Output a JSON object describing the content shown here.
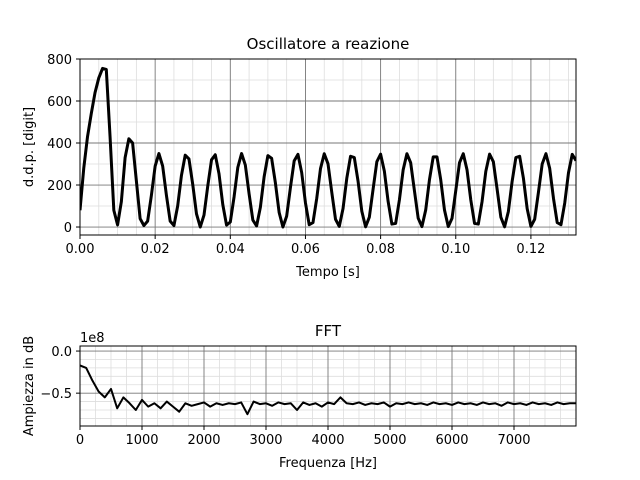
{
  "chart_data": [
    {
      "type": "line",
      "title": "Oscillatore a reazione",
      "x_label": "Tempo [s]",
      "y_label": "d.d.p. [digit]",
      "color": "#000000",
      "x": [
        0,
        0.001,
        0.002,
        0.003,
        0.004,
        0.005,
        0.006,
        0.007,
        0.008,
        0.009,
        0.01,
        0.011,
        0.012,
        0.013,
        0.014,
        0.015,
        0.016,
        0.017,
        0.018,
        0.019,
        0.02,
        0.021,
        0.022,
        0.023,
        0.024,
        0.025,
        0.026,
        0.027,
        0.028,
        0.029,
        0.03,
        0.031,
        0.032,
        0.033,
        0.034,
        0.035,
        0.036,
        0.037,
        0.038,
        0.039,
        0.04,
        0.041,
        0.042,
        0.043,
        0.044,
        0.045,
        0.046,
        0.047,
        0.048,
        0.049,
        0.05,
        0.051,
        0.052,
        0.053,
        0.054,
        0.055,
        0.056,
        0.057,
        0.058,
        0.059,
        0.06,
        0.061,
        0.062,
        0.063,
        0.064,
        0.065,
        0.066,
        0.067,
        0.068,
        0.069,
        0.07,
        0.071,
        0.072,
        0.073,
        0.074,
        0.075,
        0.076,
        0.077,
        0.078,
        0.079,
        0.08,
        0.081,
        0.082,
        0.083,
        0.084,
        0.085,
        0.086,
        0.087,
        0.088,
        0.089,
        0.09,
        0.091,
        0.092,
        0.093,
        0.094,
        0.095,
        0.096,
        0.097,
        0.098,
        0.099,
        0.1,
        0.101,
        0.102,
        0.103,
        0.104,
        0.105,
        0.106,
        0.107,
        0.108,
        0.109,
        0.11,
        0.111,
        0.112,
        0.113,
        0.114,
        0.115,
        0.116,
        0.117,
        0.118,
        0.119,
        0.12,
        0.121,
        0.122,
        0.123,
        0.124,
        0.125,
        0.126,
        0.127,
        0.128,
        0.129,
        0.13,
        0.131,
        0.132
      ],
      "values": [
        80,
        280,
        430,
        540,
        640,
        710,
        755,
        750,
        430,
        80,
        10,
        120,
        330,
        420,
        400,
        220,
        40,
        7,
        28,
        151,
        290,
        350,
        290,
        151,
        28,
        7,
        101,
        246,
        342,
        324,
        203,
        63,
        0,
        57,
        195,
        320,
        344,
        253,
        107,
        9,
        24,
        143,
        284,
        350,
        295,
        158,
        33,
        5,
        94,
        239,
        340,
        327,
        210,
        69,
        0,
        52,
        188,
        315,
        346,
        259,
        115,
        11,
        21,
        136,
        278,
        349,
        301,
        166,
        37,
        3,
        88,
        232,
        337,
        331,
        218,
        75,
        1,
        47,
        180,
        311,
        347,
        266,
        122,
        14,
        17,
        129,
        272,
        349,
        306,
        173,
        42,
        2,
        81,
        225,
        334,
        334,
        225,
        81,
        2,
        41,
        173,
        306,
        349,
        272,
        129,
        17,
        14,
        121,
        265,
        347,
        311,
        181,
        47,
        1,
        74,
        217,
        331,
        337,
        233,
        88,
        3,
        37,
        165,
        300,
        349,
        279,
        137,
        21,
        11,
        114,
        258,
        346,
        316
      ],
      "xlim": [
        0,
        0.132
      ],
      "ylim": [
        -38,
        800
      ],
      "xticks": [
        {
          "value": 0,
          "label": "0.00"
        },
        {
          "value": 0.02,
          "label": "0.02"
        },
        {
          "value": 0.04,
          "label": "0.04"
        },
        {
          "value": 0.06,
          "label": "0.06"
        },
        {
          "value": 0.08,
          "label": "0.08"
        },
        {
          "value": 0.1,
          "label": "0.10"
        },
        {
          "value": 0.12,
          "label": "0.12"
        }
      ],
      "yticks": [
        0,
        200,
        400,
        600,
        800
      ],
      "xminorticks": [
        0.005,
        0.01,
        0.015,
        0.025,
        0.03,
        0.035,
        0.045,
        0.05,
        0.055,
        0.065,
        0.07,
        0.075,
        0.085,
        0.09,
        0.095,
        0.105,
        0.11,
        0.115,
        0.125,
        0.13
      ],
      "yminorticks": [
        100,
        300,
        500,
        700
      ],
      "grid": true
    },
    {
      "type": "line",
      "title": "FFT",
      "x_label": "Frequenza [Hz]",
      "y_label": "Ampiezza in dB",
      "y_offset_label": "1e8",
      "color": "#000000",
      "x": [
        0,
        100,
        200,
        300,
        400,
        500,
        600,
        700,
        800,
        900,
        1000,
        1100,
        1200,
        1300,
        1400,
        1500,
        1600,
        1700,
        1800,
        1900,
        2000,
        2100,
        2200,
        2300,
        2400,
        2500,
        2600,
        2700,
        2800,
        2900,
        3000,
        3100,
        3200,
        3300,
        3400,
        3500,
        3600,
        3700,
        3800,
        3900,
        4000,
        4100,
        4200,
        4300,
        4400,
        4500,
        4600,
        4700,
        4800,
        4900,
        5000,
        5100,
        5200,
        5300,
        5400,
        5500,
        5600,
        5700,
        5800,
        5900,
        6000,
        6100,
        6200,
        6300,
        6400,
        6500,
        6600,
        6700,
        6800,
        6900,
        7000,
        7100,
        7200,
        7300,
        7400,
        7500,
        7600,
        7700,
        7800,
        7900,
        8000
      ],
      "values": [
        -0.17,
        -0.2,
        -0.35,
        -0.48,
        -0.55,
        -0.45,
        -0.68,
        -0.55,
        -0.62,
        -0.7,
        -0.58,
        -0.66,
        -0.62,
        -0.68,
        -0.6,
        -0.66,
        -0.72,
        -0.62,
        -0.65,
        -0.63,
        -0.61,
        -0.66,
        -0.62,
        -0.64,
        -0.62,
        -0.63,
        -0.61,
        -0.75,
        -0.6,
        -0.63,
        -0.62,
        -0.65,
        -0.61,
        -0.63,
        -0.62,
        -0.7,
        -0.61,
        -0.64,
        -0.62,
        -0.66,
        -0.61,
        -0.63,
        -0.55,
        -0.62,
        -0.63,
        -0.61,
        -0.64,
        -0.62,
        -0.63,
        -0.61,
        -0.66,
        -0.62,
        -0.63,
        -0.61,
        -0.63,
        -0.62,
        -0.64,
        -0.61,
        -0.63,
        -0.62,
        -0.64,
        -0.61,
        -0.63,
        -0.62,
        -0.64,
        -0.61,
        -0.63,
        -0.62,
        -0.65,
        -0.61,
        -0.63,
        -0.62,
        -0.64,
        -0.61,
        -0.63,
        -0.62,
        -0.64,
        -0.61,
        -0.63,
        -0.62,
        -0.62
      ],
      "xlim": [
        0,
        8000
      ],
      "ylim": [
        -0.89,
        0.06
      ],
      "xticks": [
        0,
        1000,
        2000,
        3000,
        4000,
        5000,
        6000,
        7000
      ],
      "yticks": [
        {
          "value": 0,
          "label": "0.0"
        },
        {
          "value": -0.5,
          "label": "−0.5"
        }
      ],
      "xminorticks": [
        250,
        500,
        750,
        1250,
        1500,
        1750,
        2250,
        2500,
        2750,
        3250,
        3500,
        3750,
        4250,
        4500,
        4750,
        5250,
        5500,
        5750,
        6250,
        6500,
        6750,
        7250,
        7500,
        7750
      ],
      "yminorticks": [
        -0.8,
        -0.7,
        -0.6,
        -0.4,
        -0.3,
        -0.2,
        -0.1
      ],
      "grid": true
    }
  ]
}
